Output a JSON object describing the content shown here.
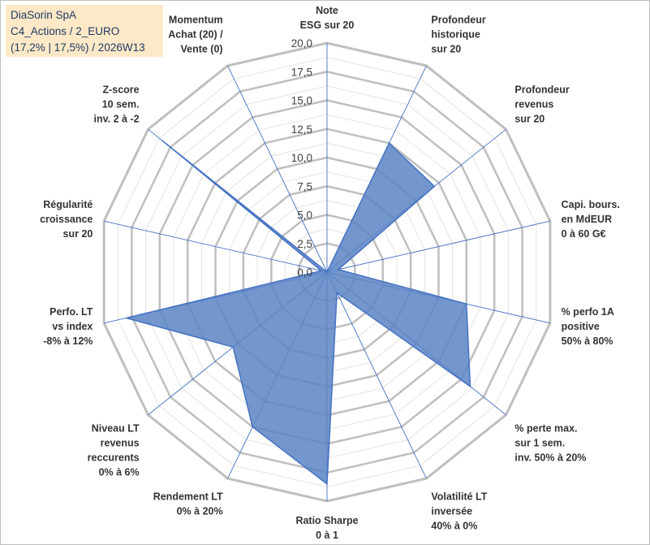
{
  "info": {
    "line1": "DiaSorin SpA",
    "line2": "C4_Actions / 2_EURO",
    "line3": "(17,2% | 17,5%) / 2026W13"
  },
  "colors": {
    "fill": "#5b84c4",
    "stroke": "#4472c4",
    "grid": "#bfbfbf",
    "spoke": "#4472c4",
    "info_bg": "#fde9c7"
  },
  "chart_data": {
    "type": "radar",
    "title": "",
    "rmin": 0,
    "rmax": 20,
    "tick_labels": [
      "0,0",
      "2,5",
      "5,0",
      "7,5",
      "10,0",
      "12,5",
      "15,0",
      "17,5",
      "20,0"
    ],
    "axes": [
      {
        "lines": [
          "Note",
          "ESG sur 20"
        ]
      },
      {
        "lines": [
          "Profondeur",
          "historique",
          "sur 20"
        ]
      },
      {
        "lines": [
          "Profondeur",
          "revenus",
          "sur 20"
        ]
      },
      {
        "lines": [
          "Capi. bours.",
          "en MdEUR",
          "0 à 60 G€"
        ]
      },
      {
        "lines": [
          "% perfo 1A",
          "positive",
          "50% à 80%"
        ]
      },
      {
        "lines": [
          "% perte max.",
          "sur 1 sem.",
          "inv. 50% à 20%"
        ]
      },
      {
        "lines": [
          "Volatilité LT",
          "inversée",
          "40% à 0%"
        ]
      },
      {
        "lines": [
          "Ratio Sharpe",
          "0 à 1"
        ]
      },
      {
        "lines": [
          "Rendement LT",
          "0% à 20%"
        ]
      },
      {
        "lines": [
          "Niveau LT",
          "revenus",
          "reccurents",
          "0% à 6%"
        ]
      },
      {
        "lines": [
          "Perfo. LT",
          "vs index",
          "-8% à 12%"
        ]
      },
      {
        "lines": [
          "Régularité",
          "croissance",
          "sur 20"
        ]
      },
      {
        "lines": [
          "Z-score",
          "10 sem.",
          "inv. 2 à -2"
        ]
      },
      {
        "lines": [
          "Momentum",
          "Achat (20) /",
          "Vente (0)"
        ]
      }
    ],
    "series": [
      {
        "name": "DiaSorin SpA",
        "values": [
          0,
          12.5,
          12.0,
          1.0,
          12.5,
          16.0,
          2.0,
          18.5,
          15.0,
          10.5,
          18.0,
          0.5,
          18.5,
          0
        ]
      }
    ]
  }
}
